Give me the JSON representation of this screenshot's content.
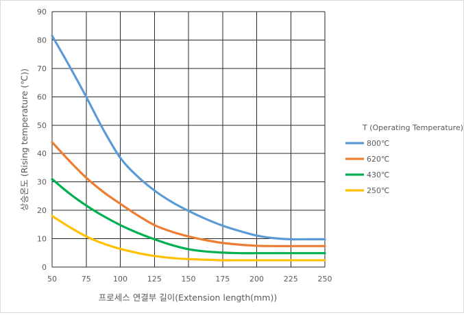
{
  "chart_data": {
    "type": "line",
    "xlabel": "프로세스 연결부 길이(Extension length(mm))",
    "ylabel": "상승온도 (Rising temperature (℃))",
    "xlim": [
      50,
      250
    ],
    "ylim": [
      0,
      90
    ],
    "xticks": [
      50,
      75,
      100,
      125,
      150,
      175,
      200,
      225,
      250
    ],
    "yticks": [
      0,
      10,
      20,
      30,
      40,
      50,
      60,
      70,
      80,
      90
    ],
    "grid": true,
    "legend_position": "right",
    "legend_title": "T (Operating Temperature)",
    "series": [
      {
        "name": "800℃",
        "color": "#5b9bd5",
        "x": [
          50,
          62.5,
          75,
          87.5,
          100,
          112.5,
          125,
          137.5,
          150,
          162.5,
          175,
          187.5,
          200,
          212.5,
          225,
          237.5,
          250
        ],
        "y": [
          81.5,
          71,
          60,
          48.5,
          38.5,
          32,
          27,
          23,
          19.8,
          17,
          14.6,
          12.7,
          11.1,
          10.2,
          9.8,
          9.8,
          9.8
        ]
      },
      {
        "name": "620℃",
        "color": "#ed7d31",
        "x": [
          50,
          62.5,
          75,
          87.5,
          100,
          112.5,
          125,
          137.5,
          150,
          162.5,
          175,
          187.5,
          200,
          212.5,
          225,
          237.5,
          250
        ],
        "y": [
          44,
          37.5,
          31.5,
          26.5,
          22.3,
          18.3,
          14.8,
          12.5,
          10.8,
          9.5,
          8.5,
          7.9,
          7.5,
          7.4,
          7.4,
          7.4,
          7.4
        ]
      },
      {
        "name": "430℃",
        "color": "#00b050",
        "x": [
          50,
          62.5,
          75,
          87.5,
          100,
          112.5,
          125,
          137.5,
          150,
          162.5,
          175,
          187.5,
          200,
          212.5,
          225,
          237.5,
          250
        ],
        "y": [
          31,
          26,
          21.7,
          18,
          14.8,
          12.1,
          9.8,
          7.8,
          6.3,
          5.5,
          5.1,
          4.9,
          4.9,
          4.9,
          4.9,
          4.9,
          4.9
        ]
      },
      {
        "name": "250℃",
        "color": "#ffc000",
        "x": [
          50,
          62.5,
          75,
          87.5,
          100,
          112.5,
          125,
          137.5,
          150,
          162.5,
          175,
          187.5,
          200,
          212.5,
          225,
          237.5,
          250
        ],
        "y": [
          18,
          14.2,
          10.8,
          8.3,
          6.4,
          5,
          3.9,
          3.2,
          2.8,
          2.6,
          2.4,
          2.4,
          2.4,
          2.4,
          2.4,
          2.4,
          2.4
        ]
      }
    ]
  }
}
